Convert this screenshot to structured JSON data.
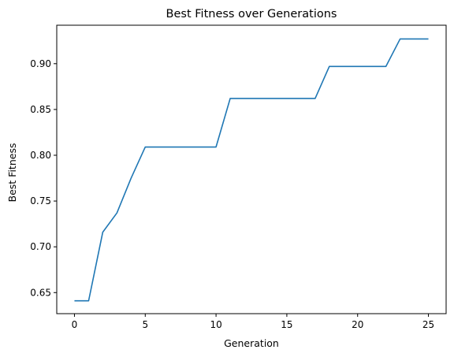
{
  "chart_data": {
    "type": "line",
    "title": "Best Fitness over Generations",
    "xlabel": "Generation",
    "ylabel": "Best Fitness",
    "xlim": [
      -1.25,
      26.25
    ],
    "ylim": [
      0.627,
      0.942
    ],
    "xticks": [
      0,
      5,
      10,
      15,
      20,
      25
    ],
    "xtick_labels": [
      "0",
      "5",
      "10",
      "15",
      "20",
      "25"
    ],
    "yticks": [
      0.65,
      0.7,
      0.75,
      0.8,
      0.85,
      0.9
    ],
    "ytick_labels": [
      "0.65",
      "0.70",
      "0.75",
      "0.80",
      "0.85",
      "0.90"
    ],
    "grid": false,
    "series": [
      {
        "color": "#1f77b4",
        "x": [
          0,
          1,
          2,
          3,
          4,
          5,
          6,
          7,
          8,
          9,
          10,
          11,
          12,
          13,
          14,
          15,
          16,
          17,
          18,
          19,
          20,
          21,
          22,
          23,
          24,
          25
        ],
        "values": [
          0.641,
          0.641,
          0.716,
          0.737,
          0.775,
          0.809,
          0.809,
          0.809,
          0.809,
          0.809,
          0.809,
          0.862,
          0.862,
          0.862,
          0.862,
          0.862,
          0.862,
          0.862,
          0.897,
          0.897,
          0.897,
          0.897,
          0.897,
          0.927,
          0.927,
          0.927
        ]
      }
    ]
  }
}
